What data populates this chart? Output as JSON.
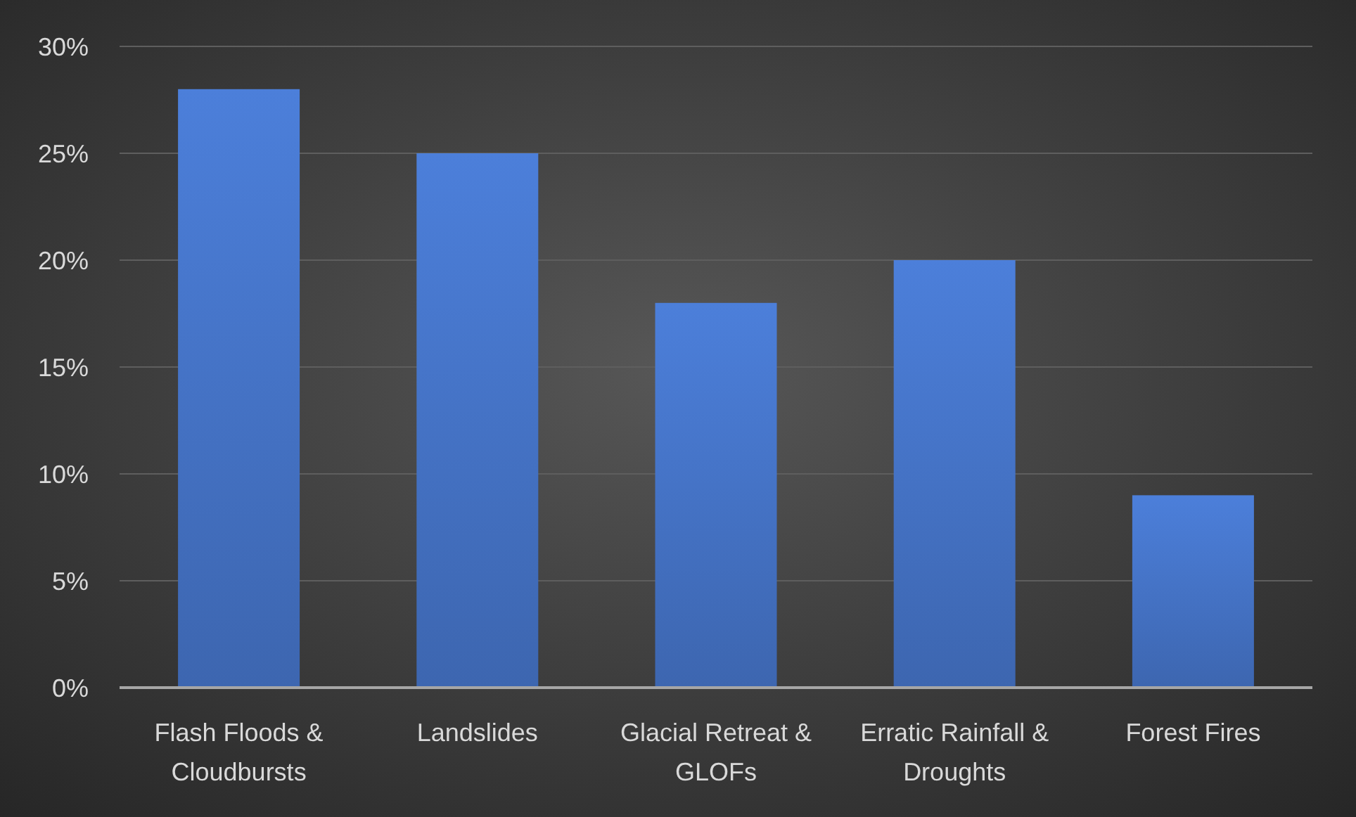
{
  "chart_data": {
    "type": "bar",
    "categories": [
      "Flash Floods & Cloudbursts",
      "Landslides",
      "Glacial Retreat & GLOFs",
      "Erratic Rainfall & Droughts",
      "Forest Fires"
    ],
    "values": [
      28,
      25,
      18,
      20,
      9
    ],
    "color": "#4472c4",
    "ylim": [
      0,
      30
    ],
    "yticks": [
      {
        "value": 0,
        "label": "0%"
      },
      {
        "value": 5,
        "label": "5%"
      },
      {
        "value": 10,
        "label": "10%"
      },
      {
        "value": 15,
        "label": "15%"
      },
      {
        "value": 20,
        "label": "20%"
      },
      {
        "value": 25,
        "label": "25%"
      },
      {
        "value": 30,
        "label": "30%"
      }
    ],
    "grid": "y"
  }
}
